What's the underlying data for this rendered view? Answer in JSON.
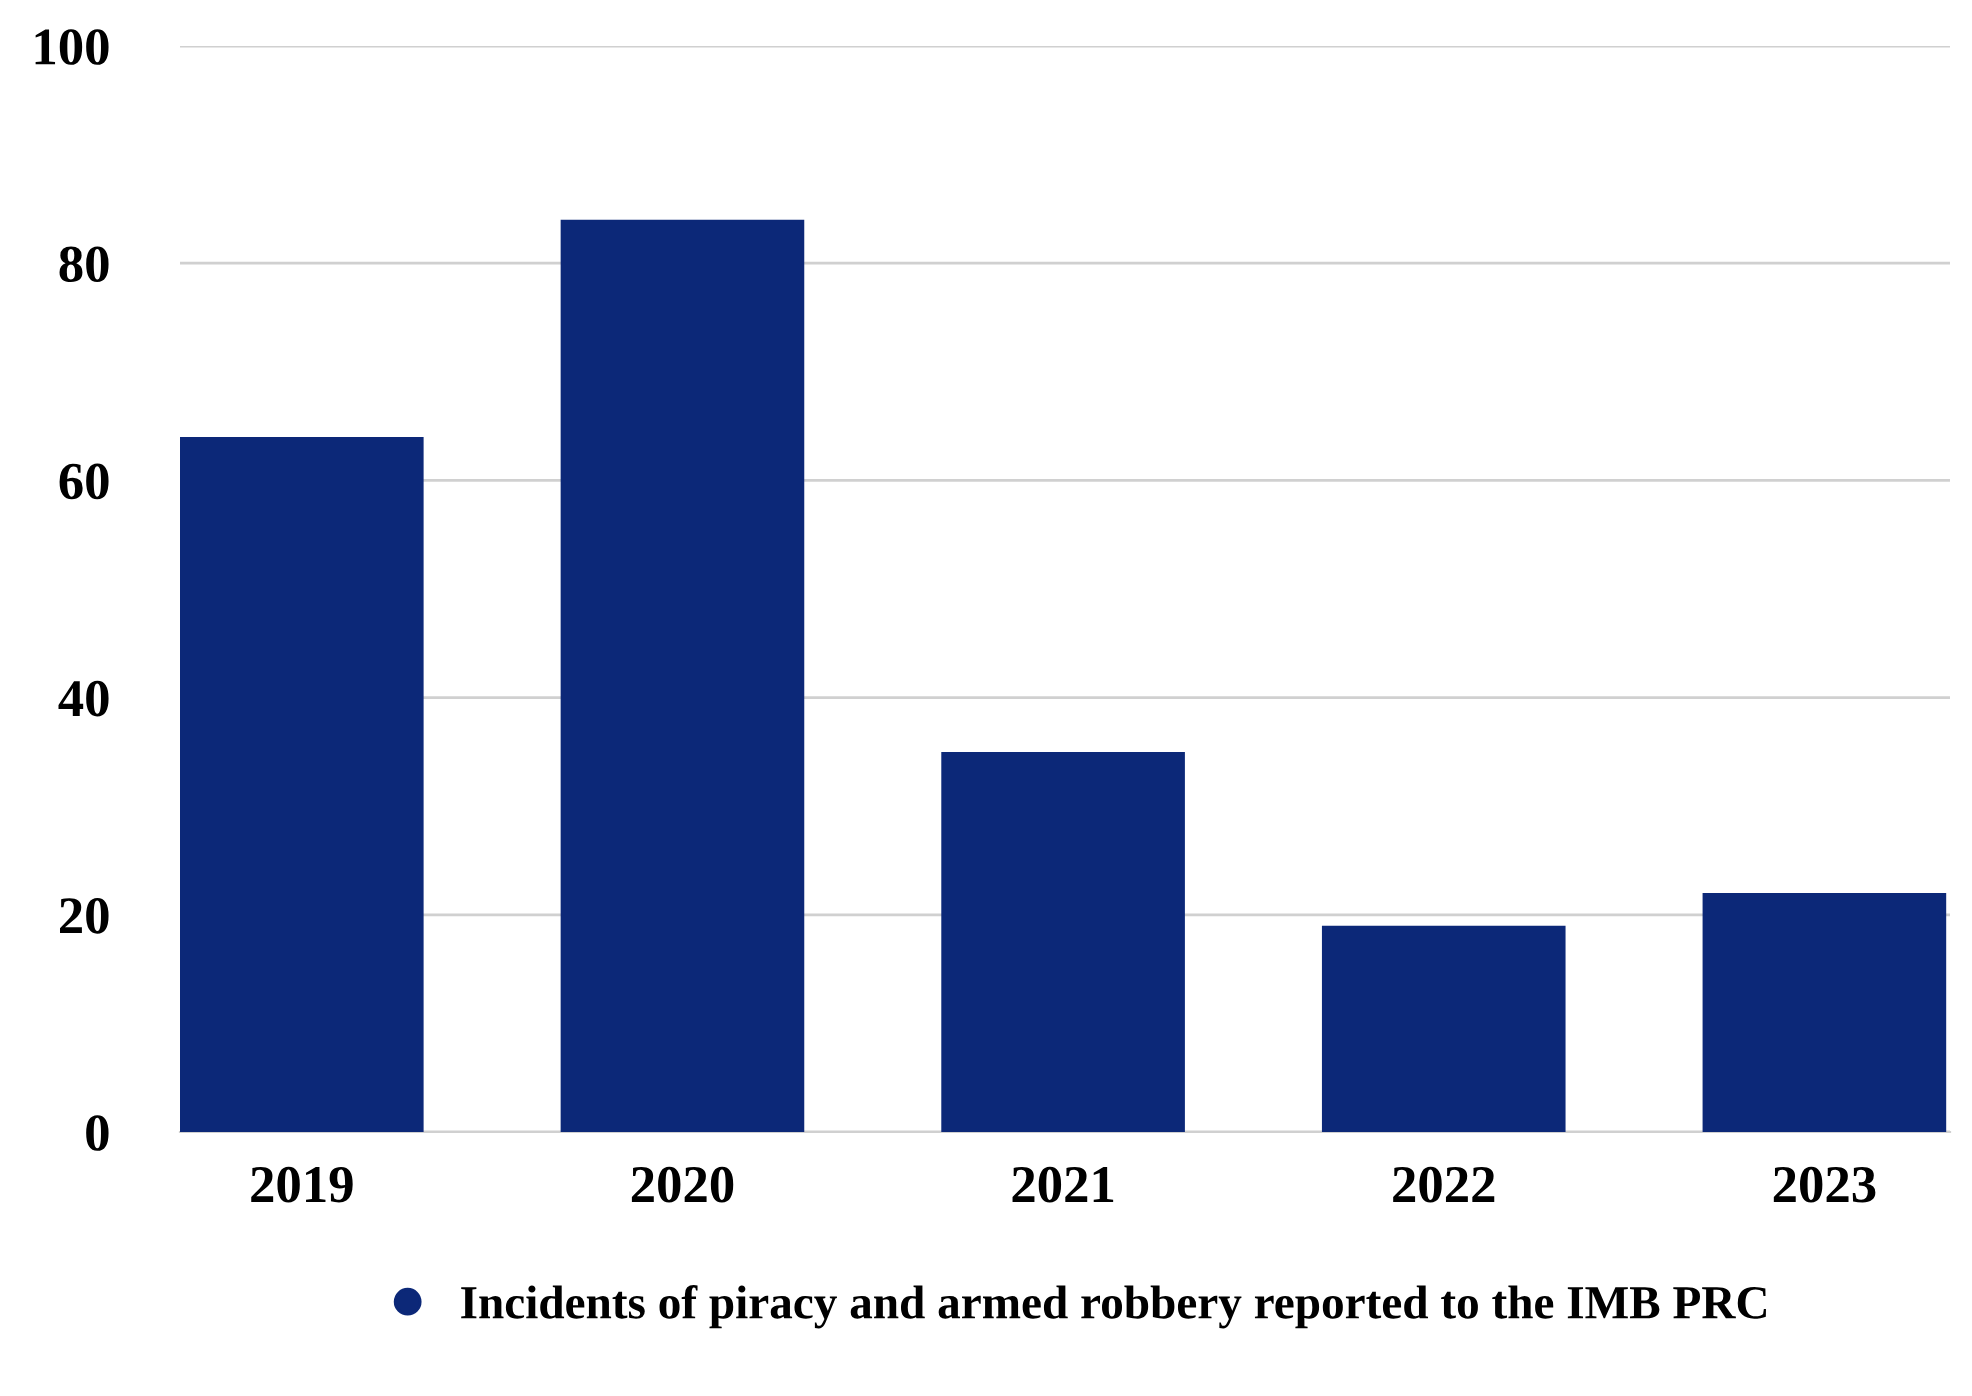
{
  "chart_data": {
    "type": "bar",
    "categories": [
      "2019",
      "2020",
      "2021",
      "2022",
      "2023"
    ],
    "series": [
      {
        "name": "Incidents of piracy and armed robbery reported to the IMB PRC",
        "color": "#0c2878",
        "values": [
          64,
          84,
          35,
          19,
          22
        ]
      }
    ],
    "ylim": [
      0,
      100
    ],
    "yticks": [
      0,
      20,
      40,
      60,
      80,
      100
    ],
    "grid": "y",
    "legend": "bottom"
  }
}
